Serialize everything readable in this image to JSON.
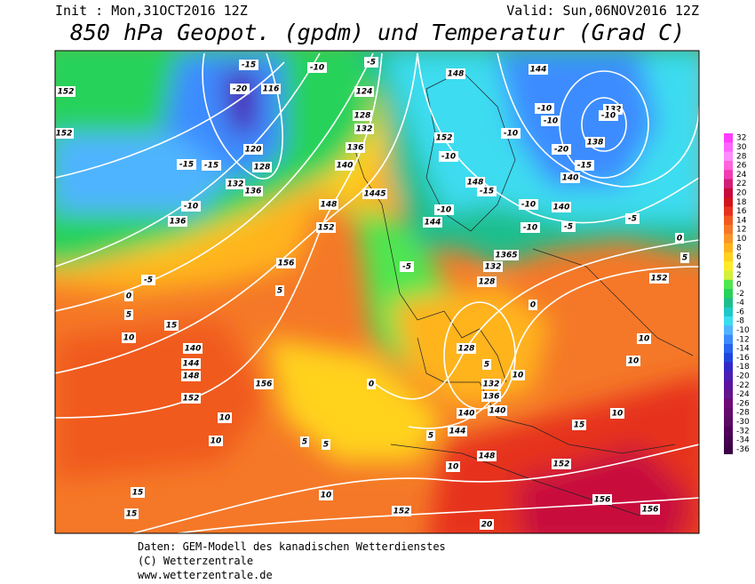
{
  "header": {
    "init": "Init : Mon,31OCT2016 12Z",
    "valid": "Valid: Sun,06NOV2016 12Z",
    "title": "850 hPa Geopot. (gpdm) und Temperatur (Grad C)"
  },
  "colorbar": {
    "values": [
      32,
      30,
      28,
      26,
      24,
      22,
      20,
      18,
      16,
      14,
      12,
      10,
      8,
      6,
      4,
      2,
      0,
      -2,
      -4,
      -6,
      -8,
      -10,
      -12,
      -14,
      -16,
      -18,
      -20,
      -22,
      -24,
      -26,
      -28,
      -30,
      -32,
      -34,
      -36
    ],
    "colors": [
      "#ff3cff",
      "#ff64ff",
      "#ff8cff",
      "#ff64dc",
      "#f03cb4",
      "#d21e78",
      "#c80a3c",
      "#d2141e",
      "#e6321e",
      "#f05a1e",
      "#f57828",
      "#fa9628",
      "#ffb41e",
      "#ffd21e",
      "#ffeb28",
      "#d2f03c",
      "#50e650",
      "#28d25a",
      "#1ebe8c",
      "#1ec8c8",
      "#3cdcf0",
      "#50b4ff",
      "#3c8cff",
      "#2864f0",
      "#1e46dc",
      "#3228c8",
      "#4b1eb4",
      "#5a14a0",
      "#64148c",
      "#6e0a78",
      "#640a6e",
      "#5a0a64",
      "#50005a",
      "#460050",
      "#3c0046"
    ]
  },
  "contour_labels": [
    "152",
    "-15",
    "-20",
    "116",
    "-10",
    "-5",
    "124",
    "128",
    "132",
    "136",
    "140",
    "120",
    "128",
    "132",
    "136",
    "-15",
    "-15",
    "-10",
    "136",
    "-5",
    "148",
    "1445",
    "152",
    "156",
    "5",
    "0",
    "5",
    "10",
    "15",
    "140",
    "144",
    "148",
    "152",
    "156",
    "10",
    "10",
    "5",
    "5",
    "10",
    "15",
    "15",
    "152",
    "148",
    "152",
    "156",
    "156",
    "20",
    "10",
    "5",
    "144",
    "140",
    "140",
    "136",
    "132",
    "128",
    "0",
    "-5",
    "132",
    "128",
    "1365",
    "-10",
    "144",
    "148",
    "-15",
    "-10",
    "152",
    "148",
    "144",
    "-10",
    "-10",
    "-20",
    "-15",
    "140",
    "138",
    "132",
    "-10",
    "-10",
    "140",
    "-5",
    "-10",
    "-5",
    "0",
    "5",
    "152",
    "10",
    "10",
    "10",
    "15",
    "10",
    "5",
    "0",
    "-10",
    "152"
  ],
  "footer": [
    "Daten: GEM-Modell des kanadischen Wetterdienstes",
    "(C) Wetterzentrale",
    "www.wetterzentrale.de"
  ]
}
